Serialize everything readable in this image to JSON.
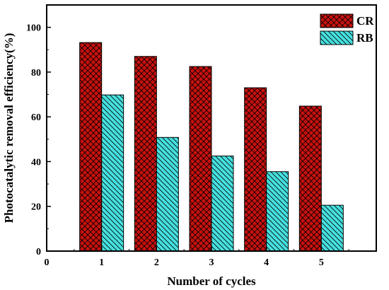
{
  "chart_data": {
    "type": "bar",
    "categories": [
      "1",
      "2",
      "3",
      "4",
      "5"
    ],
    "series": [
      {
        "name": "CR",
        "values": [
          93.2,
          87.0,
          82.5,
          73.0,
          64.8
        ],
        "color": "#c8120f",
        "hatch": "crosshatch"
      },
      {
        "name": "RB",
        "values": [
          69.8,
          50.8,
          42.5,
          35.5,
          20.5
        ],
        "color": "#46e0e0",
        "hatch": "backslash"
      }
    ],
    "xlabel": "Number of cycles",
    "ylabel": "Photocatalytic removal efficiency(%)",
    "ylim": [
      0,
      110
    ],
    "yticks": [
      0,
      20,
      40,
      60,
      80,
      100
    ],
    "xlim": [
      0,
      6
    ],
    "xticks": [
      "0",
      "1",
      "2",
      "3",
      "4",
      "5"
    ],
    "grid": false,
    "legend_position": "top-right"
  }
}
